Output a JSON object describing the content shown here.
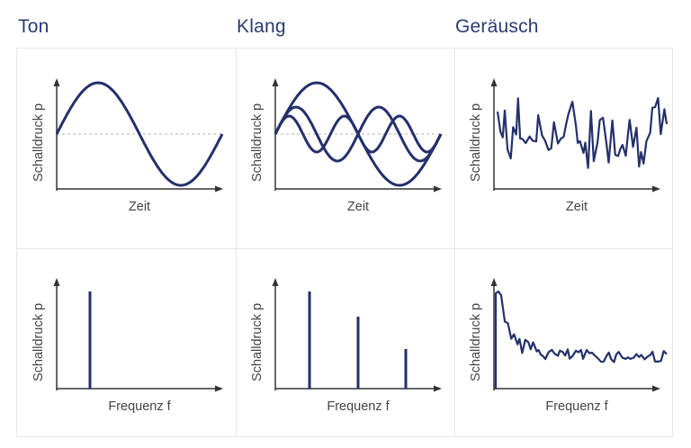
{
  "columns": [
    {
      "title": "Ton"
    },
    {
      "title": "Klang"
    },
    {
      "title": "Geräusch"
    }
  ],
  "y_axis_label": "Schalldruck p",
  "time_axis_label": "Zeit",
  "frequency_axis_label": "Frequenz f",
  "colors": {
    "curve": "#23306b",
    "title": "#2b3a73",
    "grid": "#e6e6e6",
    "axis": "#333333",
    "baseline_dashed": "#9a9a9a"
  }
}
